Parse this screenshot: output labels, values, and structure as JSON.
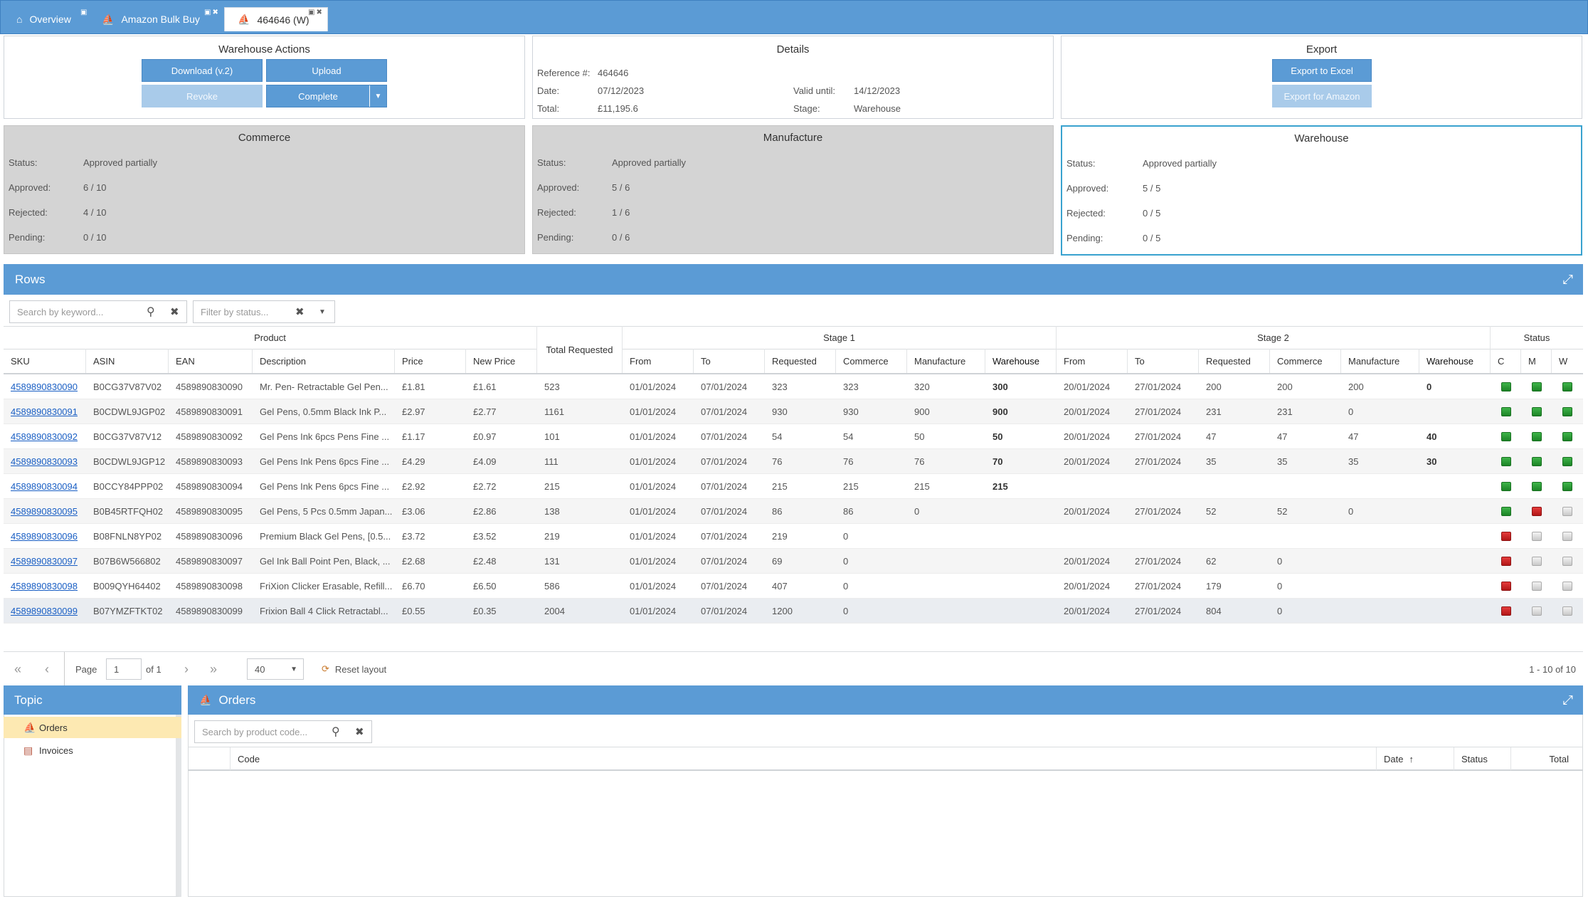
{
  "tabs": [
    {
      "label": "Overview",
      "icon": "home-icon"
    },
    {
      "label": "Amazon Bulk Buy",
      "icon": "ship-icon"
    },
    {
      "label": "464646 (W)",
      "icon": "ship-icon"
    }
  ],
  "warehouse_actions": {
    "title": "Warehouse Actions",
    "download": "Download (v.2)",
    "upload": "Upload",
    "revoke": "Revoke",
    "complete": "Complete"
  },
  "details": {
    "title": "Details",
    "reference_label": "Reference #:",
    "reference": "464646",
    "date_label": "Date:",
    "date": "07/12/2023",
    "total_label": "Total:",
    "total": "£11,195.6",
    "valid_label": "Valid until:",
    "valid": "14/12/2023",
    "stage_label": "Stage:",
    "stage": "Warehouse"
  },
  "export": {
    "title": "Export",
    "excel": "Export to Excel",
    "amazon": "Export for Amazon"
  },
  "stage_panels": [
    {
      "title": "Commerce",
      "status": "Approved partially",
      "approved": "6 / 10",
      "rejected": "4 / 10",
      "pending": "0 / 10"
    },
    {
      "title": "Manufacture",
      "status": "Approved partially",
      "approved": "5 / 6",
      "rejected": "1 / 6",
      "pending": "0 / 6"
    },
    {
      "title": "Warehouse",
      "status": "Approved partially",
      "approved": "5 / 5",
      "rejected": "0 / 5",
      "pending": "0 / 5"
    }
  ],
  "stage_labels": {
    "status": "Status:",
    "approved": "Approved:",
    "rejected": "Rejected:",
    "pending": "Pending:"
  },
  "rows_section": {
    "title": "Rows",
    "search_placeholder": "Search by keyword...",
    "filter_placeholder": "Filter by status..."
  },
  "grid_headers": {
    "product": "Product",
    "total_requested": "Total Requested",
    "stage1": "Stage 1",
    "stage2": "Stage 2",
    "status": "Status",
    "sku": "SKU",
    "asin": "ASIN",
    "ean": "EAN",
    "description": "Description",
    "price": "Price",
    "new_price": "New Price",
    "from": "From",
    "to": "To",
    "requested": "Requested",
    "commerce": "Commerce",
    "manufacture": "Manufacture",
    "warehouse": "Warehouse",
    "c": "C",
    "m": "M",
    "w": "W"
  },
  "rows": [
    {
      "sku": "4589890830090",
      "asin": "B0CG37V87V02",
      "ean": "4589890830090",
      "desc": "Mr. Pen- Retractable Gel Pen...",
      "price": "£1.81",
      "new_price": "£1.61",
      "total": "523",
      "s1_from": "01/01/2024",
      "s1_to": "07/01/2024",
      "s1_req": "323",
      "s1_com": "323",
      "s1_man": "320",
      "s1_wh": "300",
      "s2_from": "20/01/2024",
      "s2_to": "27/01/2024",
      "s2_req": "200",
      "s2_com": "200",
      "s2_man": "200",
      "s2_wh": "0",
      "c": "green",
      "m": "green",
      "w": "green"
    },
    {
      "sku": "4589890830091",
      "asin": "B0CDWL9JGP02",
      "ean": "4589890830091",
      "desc": "Gel Pens, 0.5mm Black Ink P...",
      "price": "£2.97",
      "new_price": "£2.77",
      "total": "1161",
      "s1_from": "01/01/2024",
      "s1_to": "07/01/2024",
      "s1_req": "930",
      "s1_com": "930",
      "s1_man": "900",
      "s1_wh": "900",
      "s2_from": "20/01/2024",
      "s2_to": "27/01/2024",
      "s2_req": "231",
      "s2_com": "231",
      "s2_man": "0",
      "s2_wh": "",
      "c": "green",
      "m": "green",
      "w": "green"
    },
    {
      "sku": "4589890830092",
      "asin": "B0CG37V87V12",
      "ean": "4589890830092",
      "desc": "Gel Pens Ink 6pcs Pens Fine ...",
      "price": "£1.17",
      "new_price": "£0.97",
      "total": "101",
      "s1_from": "01/01/2024",
      "s1_to": "07/01/2024",
      "s1_req": "54",
      "s1_com": "54",
      "s1_man": "50",
      "s1_wh": "50",
      "s2_from": "20/01/2024",
      "s2_to": "27/01/2024",
      "s2_req": "47",
      "s2_com": "47",
      "s2_man": "47",
      "s2_wh": "40",
      "c": "green",
      "m": "green",
      "w": "green"
    },
    {
      "sku": "4589890830093",
      "asin": "B0CDWL9JGP12",
      "ean": "4589890830093",
      "desc": "Gel Pens Ink Pens 6pcs Fine ...",
      "price": "£4.29",
      "new_price": "£4.09",
      "total": "111",
      "s1_from": "01/01/2024",
      "s1_to": "07/01/2024",
      "s1_req": "76",
      "s1_com": "76",
      "s1_man": "76",
      "s1_wh": "70",
      "s2_from": "20/01/2024",
      "s2_to": "27/01/2024",
      "s2_req": "35",
      "s2_com": "35",
      "s2_man": "35",
      "s2_wh": "30",
      "c": "green",
      "m": "green",
      "w": "green"
    },
    {
      "sku": "4589890830094",
      "asin": "B0CCY84PPP02",
      "ean": "4589890830094",
      "desc": "Gel Pens Ink Pens 6pcs Fine ...",
      "price": "£2.92",
      "new_price": "£2.72",
      "total": "215",
      "s1_from": "01/01/2024",
      "s1_to": "07/01/2024",
      "s1_req": "215",
      "s1_com": "215",
      "s1_man": "215",
      "s1_wh": "215",
      "s2_from": "",
      "s2_to": "",
      "s2_req": "",
      "s2_com": "",
      "s2_man": "",
      "s2_wh": "",
      "c": "green",
      "m": "green",
      "w": "green"
    },
    {
      "sku": "4589890830095",
      "asin": "B0B45RTFQH02",
      "ean": "4589890830095",
      "desc": "Gel Pens, 5 Pcs 0.5mm Japan...",
      "price": "£3.06",
      "new_price": "£2.86",
      "total": "138",
      "s1_from": "01/01/2024",
      "s1_to": "07/01/2024",
      "s1_req": "86",
      "s1_com": "86",
      "s1_man": "0",
      "s1_wh": "",
      "s2_from": "20/01/2024",
      "s2_to": "27/01/2024",
      "s2_req": "52",
      "s2_com": "52",
      "s2_man": "0",
      "s2_wh": "",
      "c": "green",
      "m": "red",
      "w": "none"
    },
    {
      "sku": "4589890830096",
      "asin": "B08FNLN8YP02",
      "ean": "4589890830096",
      "desc": "Premium Black Gel Pens, [0.5...",
      "price": "£3.72",
      "new_price": "£3.52",
      "total": "219",
      "s1_from": "01/01/2024",
      "s1_to": "07/01/2024",
      "s1_req": "219",
      "s1_com": "0",
      "s1_man": "",
      "s1_wh": "",
      "s2_from": "",
      "s2_to": "",
      "s2_req": "",
      "s2_com": "",
      "s2_man": "",
      "s2_wh": "",
      "c": "red",
      "m": "none",
      "w": "none"
    },
    {
      "sku": "4589890830097",
      "asin": "B07B6W566802",
      "ean": "4589890830097",
      "desc": "Gel Ink Ball Point Pen, Black, ...",
      "price": "£2.68",
      "new_price": "£2.48",
      "total": "131",
      "s1_from": "01/01/2024",
      "s1_to": "07/01/2024",
      "s1_req": "69",
      "s1_com": "0",
      "s1_man": "",
      "s1_wh": "",
      "s2_from": "20/01/2024",
      "s2_to": "27/01/2024",
      "s2_req": "62",
      "s2_com": "0",
      "s2_man": "",
      "s2_wh": "",
      "c": "red",
      "m": "none",
      "w": "none"
    },
    {
      "sku": "4589890830098",
      "asin": "B009QYH64402",
      "ean": "4589890830098",
      "desc": "FriXion Clicker Erasable, Refill...",
      "price": "£6.70",
      "new_price": "£6.50",
      "total": "586",
      "s1_from": "01/01/2024",
      "s1_to": "07/01/2024",
      "s1_req": "407",
      "s1_com": "0",
      "s1_man": "",
      "s1_wh": "",
      "s2_from": "20/01/2024",
      "s2_to": "27/01/2024",
      "s2_req": "179",
      "s2_com": "0",
      "s2_man": "",
      "s2_wh": "",
      "c": "red",
      "m": "none",
      "w": "none"
    },
    {
      "sku": "4589890830099",
      "asin": "B07YMZFTKT02",
      "ean": "4589890830099",
      "desc": "Frixion Ball 4 Click Retractabl...",
      "price": "£0.55",
      "new_price": "£0.35",
      "total": "2004",
      "s1_from": "01/01/2024",
      "s1_to": "07/01/2024",
      "s1_req": "1200",
      "s1_com": "0",
      "s1_man": "",
      "s1_wh": "",
      "s2_from": "20/01/2024",
      "s2_to": "27/01/2024",
      "s2_req": "804",
      "s2_com": "0",
      "s2_man": "",
      "s2_wh": "",
      "c": "red",
      "m": "none",
      "w": "none"
    }
  ],
  "pager": {
    "page_label": "Page",
    "page": "1",
    "of": "of 1",
    "page_size": "40",
    "reset": "Reset layout",
    "summary": "1 - 10 of 10"
  },
  "topic": {
    "title": "Topic",
    "items": [
      {
        "label": "Orders",
        "icon": "orders-icon"
      },
      {
        "label": "Invoices",
        "icon": "invoices-icon"
      }
    ]
  },
  "orders": {
    "title": "Orders",
    "search_placeholder": "Search by product code...",
    "headers": {
      "code": "Code",
      "date": "Date",
      "status": "Status",
      "total": "Total"
    }
  },
  "colors": {
    "accent": "#5b9bd5",
    "selected_border": "#39a2cf",
    "approved": "#2a9a35",
    "rejected": "#c62020"
  }
}
